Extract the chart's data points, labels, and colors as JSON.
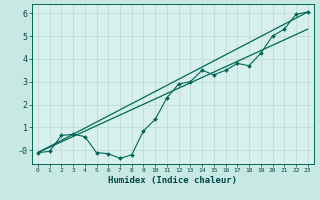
{
  "background_color": "#c8e8e4",
  "plot_bg_color": "#d8f0ec",
  "grid_color": "#b8d8d4",
  "line_color": "#006858",
  "xlabel": "Humidex (Indice chaleur)",
  "xlim": [
    -0.5,
    23.5
  ],
  "ylim": [
    -0.6,
    6.4
  ],
  "xticks": [
    0,
    1,
    2,
    3,
    4,
    5,
    6,
    7,
    8,
    9,
    10,
    11,
    12,
    13,
    14,
    15,
    16,
    17,
    18,
    19,
    20,
    21,
    22,
    23
  ],
  "yticks": [
    0,
    1,
    2,
    3,
    4,
    5,
    6
  ],
  "ytick_labels": [
    "-0",
    "1",
    "2",
    "3",
    "4",
    "5",
    "6"
  ],
  "line1_x": [
    0,
    1,
    2,
    3,
    4,
    5,
    6,
    7,
    8,
    9,
    10,
    11,
    12,
    13,
    14,
    15,
    16,
    17,
    18,
    19,
    20,
    21,
    22,
    23
  ],
  "line1_y": [
    -0.1,
    -0.05,
    0.65,
    0.7,
    0.6,
    -0.1,
    -0.15,
    -0.35,
    -0.2,
    0.85,
    1.35,
    2.3,
    2.9,
    3.0,
    3.5,
    3.3,
    3.5,
    3.8,
    3.7,
    4.25,
    5.0,
    5.3,
    5.95,
    6.05
  ],
  "line2_x": [
    0,
    23
  ],
  "line2_y": [
    -0.1,
    6.05
  ],
  "line3_x": [
    0,
    23
  ],
  "line3_y": [
    -0.1,
    5.3
  ],
  "spine_color": "#006858",
  "tick_color": "#004848"
}
